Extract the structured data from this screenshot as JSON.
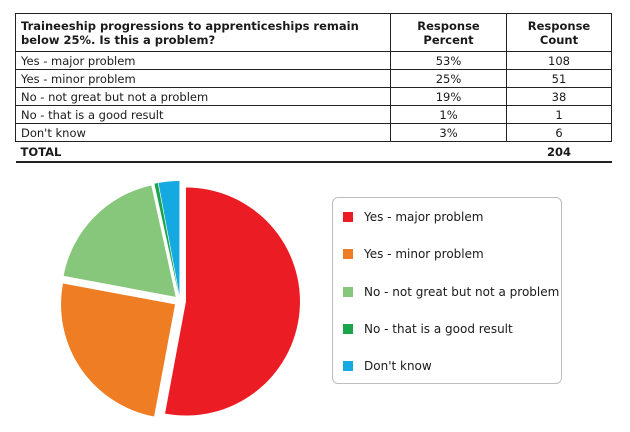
{
  "table": {
    "header": {
      "question": "Traineeship progressions to apprenticeships remain below 25%. Is this a problem?",
      "percent": "Response Percent",
      "count": "Response Count"
    },
    "rows": [
      {
        "label": "Yes - major problem",
        "percent": "53%",
        "count": "108"
      },
      {
        "label": "Yes - minor problem",
        "percent": "25%",
        "count": "51"
      },
      {
        "label": "No - not great but not a problem",
        "percent": "19%",
        "count": "38"
      },
      {
        "label": "No - that is a good result",
        "percent": "1%",
        "count": "1"
      },
      {
        "label": "Don't know",
        "percent": "3%",
        "count": "6"
      }
    ],
    "total": {
      "label": "TOTAL",
      "count": "204"
    }
  },
  "chart_data": {
    "type": "pie",
    "title": "",
    "categories": [
      "Yes - major problem",
      "Yes - minor problem",
      "No - not great but not a problem",
      "No - that is a good result",
      "Don't know"
    ],
    "values": [
      108,
      51,
      38,
      1,
      6
    ],
    "colors": [
      "#ec1c24",
      "#ee7d24",
      "#87c77b",
      "#1aa54a",
      "#14a9e1"
    ],
    "legend_position": "right"
  }
}
